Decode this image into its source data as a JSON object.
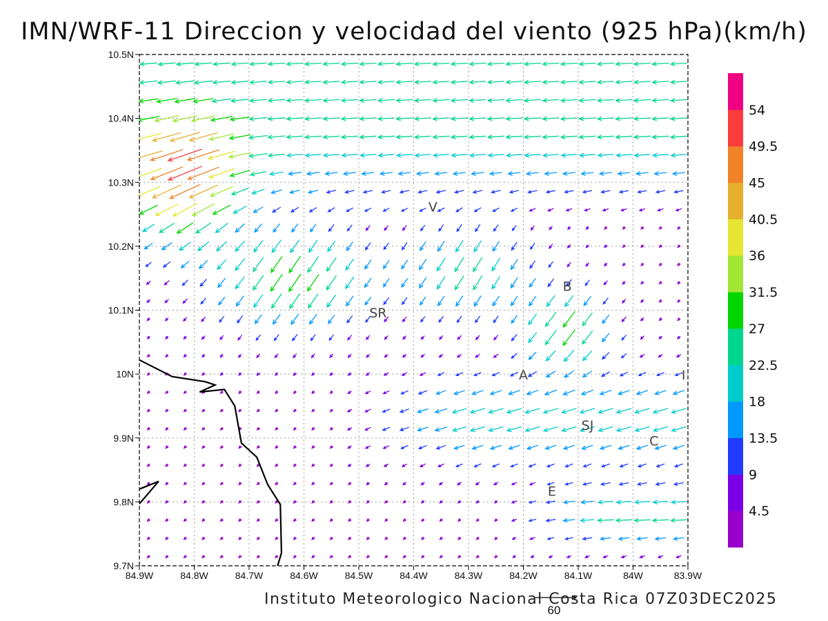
{
  "title": "IMN/WRF-11 Direccion y velocidad del viento (925 hPa)(km/h)",
  "footer": "Instituto Meteorologico Nacional Costa Rica 07Z03DEC2025",
  "reference_vector": {
    "label": "60",
    "speed": 60
  },
  "axes": {
    "lon_ticks": [
      "84.9W",
      "84.8W",
      "84.7W",
      "84.6W",
      "84.5W",
      "84.4W",
      "84.3W",
      "84.2W",
      "84.1W",
      "84W",
      "83.9W"
    ],
    "lat_ticks": [
      "10.5N",
      "10.4N",
      "10.3N",
      "10.2N",
      "10.1N",
      "10N",
      "9.9N",
      "9.8N",
      "9.7N"
    ],
    "lon_range": [
      -84.9,
      -83.9
    ],
    "lat_range": [
      9.7,
      10.5
    ],
    "grid": "dotted"
  },
  "colorbar": {
    "levels": [
      "4.5",
      "9",
      "13.5",
      "18",
      "22.5",
      "27",
      "31.5",
      "36",
      "40.5",
      "45",
      "49.5",
      "54"
    ],
    "colors": [
      "#9900cc",
      "#7a00e6",
      "#1f3cff",
      "#0099ff",
      "#00cccc",
      "#00d68f",
      "#00d600",
      "#a0e632",
      "#e6e632",
      "#e6af2d",
      "#f08228",
      "#fa3c3c",
      "#f00082"
    ]
  },
  "places": [
    {
      "label": "V",
      "lon": -84.365,
      "lat": 10.262
    },
    {
      "label": "B",
      "lon": -84.12,
      "lat": 10.138
    },
    {
      "label": "SR",
      "lon": -84.465,
      "lat": 10.096
    },
    {
      "label": "A",
      "lon": -84.2,
      "lat": 9.999
    },
    {
      "label": "I",
      "lon": -83.908,
      "lat": 9.999
    },
    {
      "label": "SJ",
      "lon": -84.083,
      "lat": 9.92
    },
    {
      "label": "C",
      "lon": -83.962,
      "lat": 9.896
    },
    {
      "label": "E",
      "lon": -84.148,
      "lat": 9.817
    }
  ],
  "coastline": [
    [
      -84.9,
      10.022
    ],
    [
      -84.84,
      9.996
    ],
    [
      -84.78,
      9.988
    ],
    [
      -84.762,
      9.983
    ],
    [
      -84.79,
      9.972
    ],
    [
      -84.745,
      9.976
    ],
    [
      -84.726,
      9.95
    ],
    [
      -84.714,
      9.892
    ],
    [
      -84.686,
      9.87
    ],
    [
      -84.666,
      9.827
    ],
    [
      -84.643,
      9.796
    ],
    [
      -84.641,
      9.72
    ],
    [
      -84.648,
      9.7
    ]
  ],
  "island": [
    [
      -84.9,
      9.82
    ],
    [
      -84.865,
      9.832
    ],
    [
      -84.9,
      9.797
    ]
  ]
}
